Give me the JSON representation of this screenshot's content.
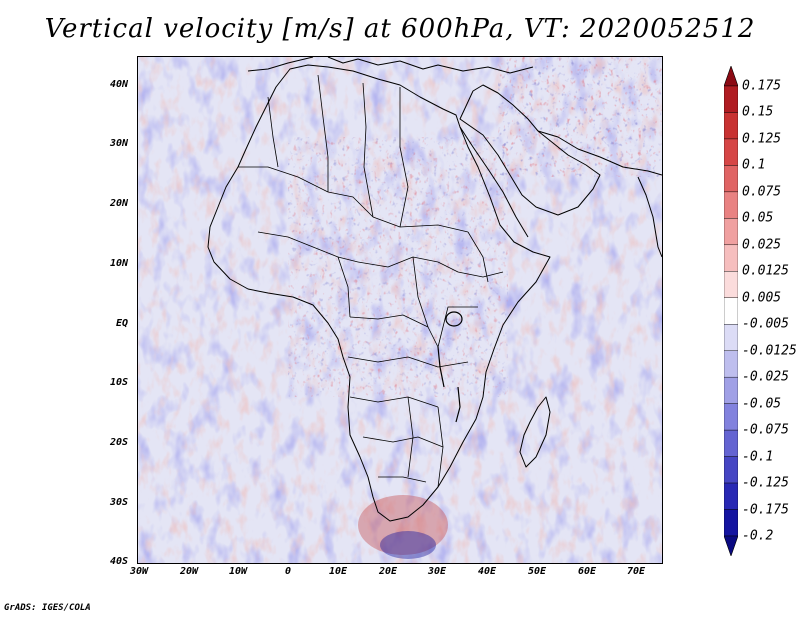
{
  "title": "Vertical velocity [m/s] at 600hPa, VT: 2020052512",
  "footer": "GrADS: IGES/COLA",
  "map": {
    "projection": "lat-lon",
    "lon_range": [
      -30,
      75
    ],
    "lat_range": [
      -40,
      45
    ],
    "y_ticks": [
      "40N",
      "30N",
      "20N",
      "10N",
      "EQ",
      "10S",
      "20S",
      "30S",
      "40S"
    ],
    "x_ticks": [
      "30W",
      "20W",
      "10W",
      "0",
      "10E",
      "20E",
      "30E",
      "40E",
      "50E",
      "60E",
      "70E"
    ]
  },
  "colorbar": {
    "labels": [
      "0.175",
      "0.15",
      "0.125",
      "0.1",
      "0.075",
      "0.05",
      "0.025",
      "0.0125",
      "0.005",
      "-0.005",
      "-0.0125",
      "-0.025",
      "-0.05",
      "-0.075",
      "-0.1",
      "-0.125",
      "-0.175",
      "-0.2"
    ],
    "colors": [
      "#8b0a14",
      "#b01c22",
      "#c83232",
      "#d64646",
      "#e06464",
      "#e98282",
      "#f0a0a0",
      "#f6bebe",
      "#fbdcdc",
      "#ffffff",
      "#dcdcf6",
      "#bebeee",
      "#a0a0e6",
      "#8282de",
      "#6464d2",
      "#4646c4",
      "#2828b4",
      "#1414a0",
      "#0a0a82"
    ]
  }
}
